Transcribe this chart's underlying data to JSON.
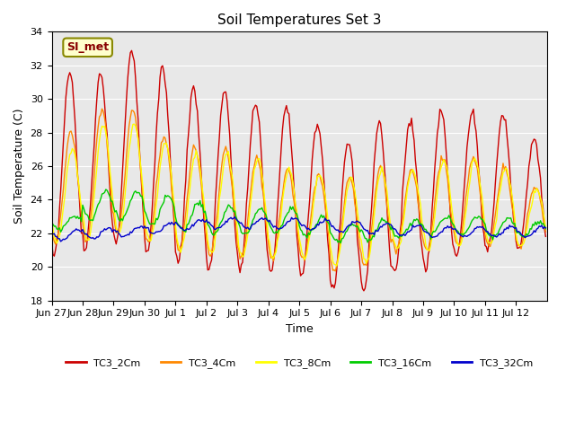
{
  "title": "Soil Temperatures Set 3",
  "xlabel": "Time",
  "ylabel": "Soil Temperature (C)",
  "ylim": [
    18,
    34
  ],
  "yticks": [
    18,
    20,
    22,
    24,
    26,
    28,
    30,
    32,
    34
  ],
  "annotation": "SI_met",
  "series_colors": [
    "#cc0000",
    "#ff8800",
    "#ffff00",
    "#00cc00",
    "#0000cc"
  ],
  "series_labels": [
    "TC3_2Cm",
    "TC3_4Cm",
    "TC3_8Cm",
    "TC3_16Cm",
    "TC3_32Cm"
  ],
  "xtick_labels": [
    "Jun 27",
    "Jun 28",
    "Jun 29",
    "Jun 30",
    "Jul 1",
    "Jul 2",
    "Jul 3",
    "Jul 4",
    "Jul 5",
    "Jul 6",
    "Jul 7",
    "Jul 8",
    "Jul 9",
    "Jul 10",
    "Jul 11",
    "Jul 12"
  ],
  "bg_color": "#e8e8e8",
  "line_width": 1.0,
  "n_days": 16,
  "pts_per_day": 24,
  "peaks_2cm": [
    31.5,
    31.5,
    33.0,
    31.8,
    30.5,
    30.5,
    29.8,
    29.7,
    28.5,
    27.5,
    28.6,
    28.7,
    29.3,
    29.2,
    29.1,
    27.6
  ],
  "troughs_2cm": [
    20.5,
    21.0,
    21.5,
    20.9,
    20.2,
    19.8,
    19.8,
    19.6,
    19.5,
    18.6,
    18.6,
    19.7,
    19.8,
    20.7,
    21.0,
    21.0
  ],
  "peaks_4cm": [
    28.0,
    29.4,
    29.4,
    27.8,
    27.1,
    27.0,
    26.5,
    25.8,
    25.5,
    25.3,
    25.9,
    25.8,
    26.5,
    26.5,
    26.0,
    24.8
  ],
  "troughs_4cm": [
    21.5,
    21.5,
    22.0,
    21.5,
    21.0,
    20.8,
    20.6,
    20.5,
    20.5,
    19.8,
    20.0,
    21.0,
    21.0,
    21.3,
    21.3,
    21.2
  ],
  "peaks_8cm": [
    27.0,
    28.5,
    28.5,
    27.5,
    26.8,
    26.8,
    26.4,
    25.8,
    25.5,
    25.3,
    25.8,
    25.8,
    26.4,
    26.4,
    25.8,
    24.6
  ],
  "troughs_8cm": [
    21.5,
    21.6,
    22.0,
    21.5,
    21.0,
    20.8,
    20.6,
    20.5,
    20.5,
    20.0,
    20.2,
    21.0,
    21.0,
    21.3,
    21.3,
    21.2
  ],
  "peaks_16cm": [
    23.0,
    24.5,
    24.5,
    24.2,
    23.8,
    23.6,
    23.5,
    23.5,
    23.0,
    22.5,
    22.8,
    22.8,
    23.0,
    23.0,
    22.9,
    22.7
  ],
  "troughs_16cm": [
    22.2,
    22.8,
    22.8,
    22.5,
    22.2,
    22.0,
    22.0,
    22.0,
    21.8,
    21.5,
    21.6,
    21.8,
    21.9,
    21.9,
    21.8,
    21.8
  ],
  "base_32cm": [
    21.9,
    22.0,
    22.1,
    22.3,
    22.5,
    22.6,
    22.6,
    22.6,
    22.5,
    22.4,
    22.3,
    22.2,
    22.1,
    22.1,
    22.1,
    22.1
  ]
}
